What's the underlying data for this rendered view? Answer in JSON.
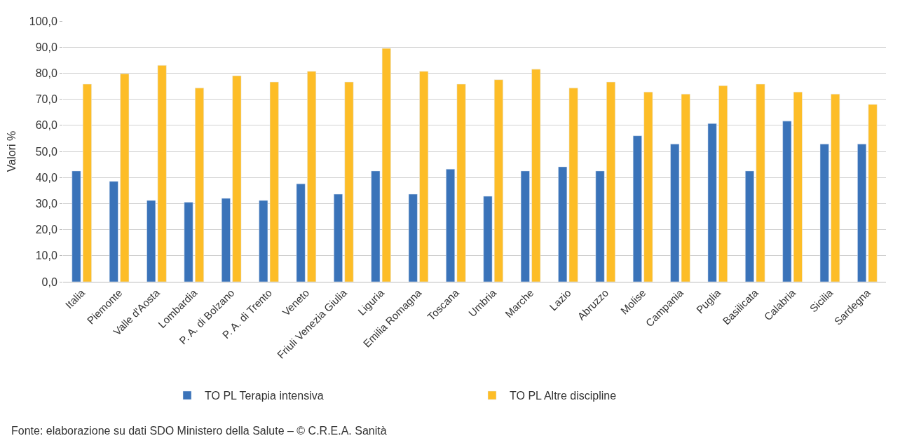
{
  "chart_data": {
    "type": "bar",
    "ylabel": "Valori %",
    "categories": [
      "Italia",
      "Piemonte",
      "Valle d'Aosta",
      "Lombardia",
      "P. A. di Bolzano",
      "P. A. di Trento",
      "Veneto",
      "Friuli Venezia Giulia",
      "Liguria",
      "Emilia Romagna",
      "Toscana",
      "Umbria",
      "Marche",
      "Lazio",
      "Abruzzo",
      "Molise",
      "Campania",
      "Puglia",
      "Basilicata",
      "Calabria",
      "Sicilia",
      "Sardegna"
    ],
    "series": [
      {
        "name": "TO PL Terapia intensiva",
        "color": "#3a73b9",
        "values": [
          42.5,
          38.5,
          31.2,
          30.5,
          32.0,
          31.2,
          37.6,
          33.6,
          42.5,
          33.6,
          43.2,
          32.8,
          42.5,
          44.1,
          42.5,
          56.0,
          52.8,
          60.7,
          42.5,
          61.6,
          52.8,
          52.8
        ]
      },
      {
        "name": "TO PL Altre discipline",
        "color": "#fdbd27",
        "values": [
          75.8,
          79.8,
          83.0,
          74.3,
          79.0,
          76.6,
          80.7,
          76.6,
          89.5,
          80.7,
          75.8,
          77.5,
          81.5,
          74.3,
          76.6,
          72.8,
          72.0,
          75.2,
          75.8,
          72.8,
          72.0,
          68.0
        ]
      }
    ],
    "ylim": [
      0,
      100
    ],
    "yticks": [
      {
        "value": 0,
        "label": "0,0"
      },
      {
        "value": 10,
        "label": "10,0"
      },
      {
        "value": 20,
        "label": "20,0"
      },
      {
        "value": 30,
        "label": "30,0"
      },
      {
        "value": 40,
        "label": "40,0"
      },
      {
        "value": 50,
        "label": "50,0"
      },
      {
        "value": 60,
        "label": "60,0"
      },
      {
        "value": 70,
        "label": "70,0"
      },
      {
        "value": 80,
        "label": "80,0"
      },
      {
        "value": 90,
        "label": "90,0"
      },
      {
        "value": 100,
        "label": "100,0"
      }
    ],
    "grid": "y",
    "legend": "bottom",
    "annotations": [
      "Fonte: elaborazione su dati SDO Ministero della Salute – © C.R.E.A. Sanità"
    ]
  }
}
